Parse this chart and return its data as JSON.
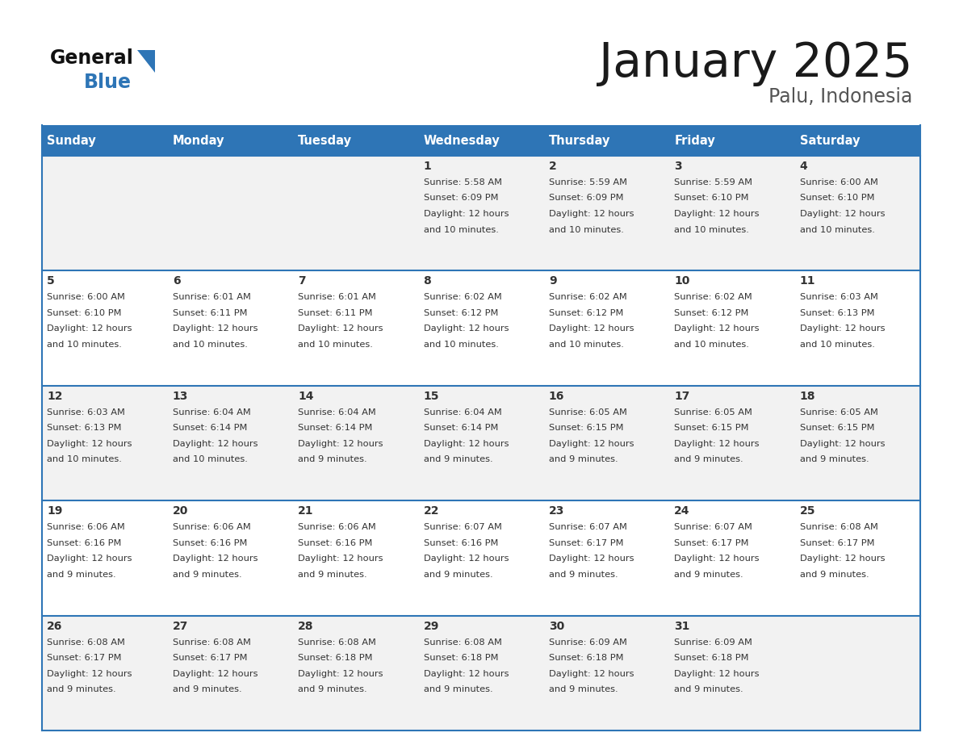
{
  "title": "January 2025",
  "subtitle": "Palu, Indonesia",
  "header_color": "#2E75B6",
  "header_text_color": "#FFFFFF",
  "weekdays": [
    "Sunday",
    "Monday",
    "Tuesday",
    "Wednesday",
    "Thursday",
    "Friday",
    "Saturday"
  ],
  "bg_color_row0": "#F2F2F2",
  "bg_color_row1": "#FFFFFF",
  "border_color": "#2E75B6",
  "text_color": "#333333",
  "day_number_color": "#333333",
  "title_color": "#1a1a1a",
  "subtitle_color": "#555555",
  "logo_general_color": "#111111",
  "logo_blue_color": "#2E75B6",
  "logo_triangle_color": "#2E75B6",
  "calendar_data": [
    [
      null,
      null,
      null,
      {
        "day": 1,
        "sunrise": "5:58 AM",
        "sunset": "6:09 PM",
        "daylight": "12 hours",
        "daylight2": "and 10 minutes."
      },
      {
        "day": 2,
        "sunrise": "5:59 AM",
        "sunset": "6:09 PM",
        "daylight": "12 hours",
        "daylight2": "and 10 minutes."
      },
      {
        "day": 3,
        "sunrise": "5:59 AM",
        "sunset": "6:10 PM",
        "daylight": "12 hours",
        "daylight2": "and 10 minutes."
      },
      {
        "day": 4,
        "sunrise": "6:00 AM",
        "sunset": "6:10 PM",
        "daylight": "12 hours",
        "daylight2": "and 10 minutes."
      }
    ],
    [
      {
        "day": 5,
        "sunrise": "6:00 AM",
        "sunset": "6:10 PM",
        "daylight": "12 hours",
        "daylight2": "and 10 minutes."
      },
      {
        "day": 6,
        "sunrise": "6:01 AM",
        "sunset": "6:11 PM",
        "daylight": "12 hours",
        "daylight2": "and 10 minutes."
      },
      {
        "day": 7,
        "sunrise": "6:01 AM",
        "sunset": "6:11 PM",
        "daylight": "12 hours",
        "daylight2": "and 10 minutes."
      },
      {
        "day": 8,
        "sunrise": "6:02 AM",
        "sunset": "6:12 PM",
        "daylight": "12 hours",
        "daylight2": "and 10 minutes."
      },
      {
        "day": 9,
        "sunrise": "6:02 AM",
        "sunset": "6:12 PM",
        "daylight": "12 hours",
        "daylight2": "and 10 minutes."
      },
      {
        "day": 10,
        "sunrise": "6:02 AM",
        "sunset": "6:12 PM",
        "daylight": "12 hours",
        "daylight2": "and 10 minutes."
      },
      {
        "day": 11,
        "sunrise": "6:03 AM",
        "sunset": "6:13 PM",
        "daylight": "12 hours",
        "daylight2": "and 10 minutes."
      }
    ],
    [
      {
        "day": 12,
        "sunrise": "6:03 AM",
        "sunset": "6:13 PM",
        "daylight": "12 hours",
        "daylight2": "and 10 minutes."
      },
      {
        "day": 13,
        "sunrise": "6:04 AM",
        "sunset": "6:14 PM",
        "daylight": "12 hours",
        "daylight2": "and 10 minutes."
      },
      {
        "day": 14,
        "sunrise": "6:04 AM",
        "sunset": "6:14 PM",
        "daylight": "12 hours",
        "daylight2": "and 9 minutes."
      },
      {
        "day": 15,
        "sunrise": "6:04 AM",
        "sunset": "6:14 PM",
        "daylight": "12 hours",
        "daylight2": "and 9 minutes."
      },
      {
        "day": 16,
        "sunrise": "6:05 AM",
        "sunset": "6:15 PM",
        "daylight": "12 hours",
        "daylight2": "and 9 minutes."
      },
      {
        "day": 17,
        "sunrise": "6:05 AM",
        "sunset": "6:15 PM",
        "daylight": "12 hours",
        "daylight2": "and 9 minutes."
      },
      {
        "day": 18,
        "sunrise": "6:05 AM",
        "sunset": "6:15 PM",
        "daylight": "12 hours",
        "daylight2": "and 9 minutes."
      }
    ],
    [
      {
        "day": 19,
        "sunrise": "6:06 AM",
        "sunset": "6:16 PM",
        "daylight": "12 hours",
        "daylight2": "and 9 minutes."
      },
      {
        "day": 20,
        "sunrise": "6:06 AM",
        "sunset": "6:16 PM",
        "daylight": "12 hours",
        "daylight2": "and 9 minutes."
      },
      {
        "day": 21,
        "sunrise": "6:06 AM",
        "sunset": "6:16 PM",
        "daylight": "12 hours",
        "daylight2": "and 9 minutes."
      },
      {
        "day": 22,
        "sunrise": "6:07 AM",
        "sunset": "6:16 PM",
        "daylight": "12 hours",
        "daylight2": "and 9 minutes."
      },
      {
        "day": 23,
        "sunrise": "6:07 AM",
        "sunset": "6:17 PM",
        "daylight": "12 hours",
        "daylight2": "and 9 minutes."
      },
      {
        "day": 24,
        "sunrise": "6:07 AM",
        "sunset": "6:17 PM",
        "daylight": "12 hours",
        "daylight2": "and 9 minutes."
      },
      {
        "day": 25,
        "sunrise": "6:08 AM",
        "sunset": "6:17 PM",
        "daylight": "12 hours",
        "daylight2": "and 9 minutes."
      }
    ],
    [
      {
        "day": 26,
        "sunrise": "6:08 AM",
        "sunset": "6:17 PM",
        "daylight": "12 hours",
        "daylight2": "and 9 minutes."
      },
      {
        "day": 27,
        "sunrise": "6:08 AM",
        "sunset": "6:17 PM",
        "daylight": "12 hours",
        "daylight2": "and 9 minutes."
      },
      {
        "day": 28,
        "sunrise": "6:08 AM",
        "sunset": "6:18 PM",
        "daylight": "12 hours",
        "daylight2": "and 9 minutes."
      },
      {
        "day": 29,
        "sunrise": "6:08 AM",
        "sunset": "6:18 PM",
        "daylight": "12 hours",
        "daylight2": "and 9 minutes."
      },
      {
        "day": 30,
        "sunrise": "6:09 AM",
        "sunset": "6:18 PM",
        "daylight": "12 hours",
        "daylight2": "and 9 minutes."
      },
      {
        "day": 31,
        "sunrise": "6:09 AM",
        "sunset": "6:18 PM",
        "daylight": "12 hours",
        "daylight2": "and 9 minutes."
      },
      null
    ]
  ]
}
